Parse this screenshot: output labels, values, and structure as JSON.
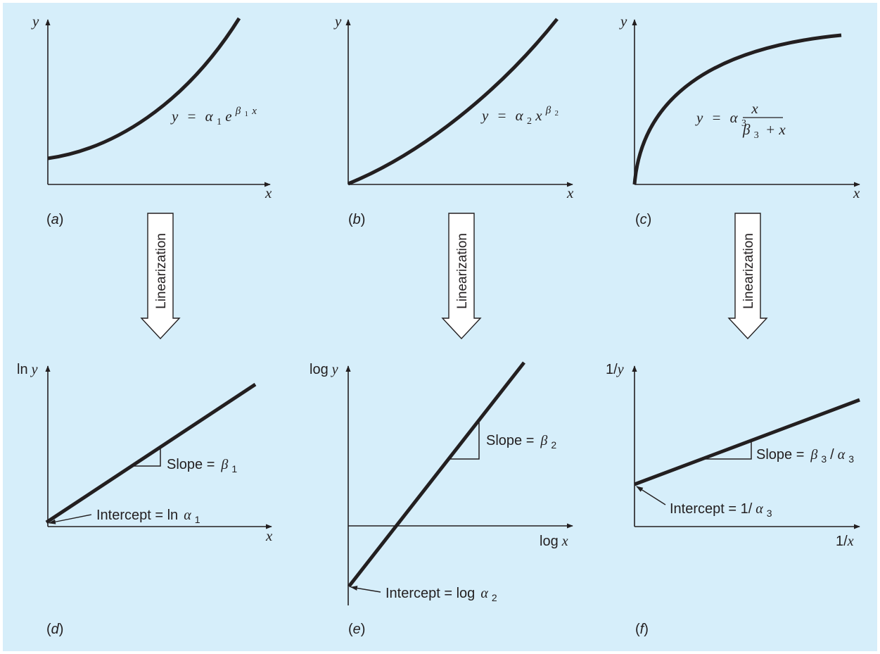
{
  "panels": {
    "a": {
      "label_open": "(",
      "label_letter": "a",
      "label_close": ")",
      "y_axis": "y",
      "x_axis": "x",
      "eq_lhs": "y",
      "eq_op": "=",
      "eq_coef": "α",
      "eq_coef_sub": "1",
      "eq_base": "e",
      "eq_exp_coef": "β",
      "eq_exp_sub": "1",
      "eq_exp_var": "x"
    },
    "b": {
      "label_open": "(",
      "label_letter": "b",
      "label_close": ")",
      "y_axis": "y",
      "x_axis": "x",
      "eq_lhs": "y",
      "eq_op": "=",
      "eq_coef": "α",
      "eq_coef_sub": "2",
      "eq_base": "x",
      "eq_exp_coef": "β",
      "eq_exp_sub": "2"
    },
    "c": {
      "label_open": "(",
      "label_letter": "c",
      "label_close": ")",
      "y_axis": "y",
      "x_axis": "x",
      "eq_lhs": "y",
      "eq_op": "=",
      "eq_coef": "α",
      "eq_coef_sub": "3",
      "eq_num": "x",
      "eq_den_coef": "β",
      "eq_den_sub": "3",
      "eq_den_rest": "+ x"
    },
    "d": {
      "label_open": "(",
      "label_letter": "d",
      "label_close": ")",
      "y_axis_fn": "ln",
      "y_axis_var": "y",
      "x_axis": "x",
      "slope_text": "Slope =",
      "slope_sym": "β",
      "slope_sub": "1",
      "intercept_text": "Intercept = ln",
      "intercept_sym": "α",
      "intercept_sub": "1"
    },
    "e": {
      "label_open": "(",
      "label_letter": "e",
      "label_close": ")",
      "y_axis_fn": "log",
      "y_axis_var": "y",
      "x_axis_fn": "log",
      "x_axis_var": "x",
      "slope_text": "Slope =",
      "slope_sym": "β",
      "slope_sub": "2",
      "intercept_text": "Intercept = log",
      "intercept_sym": "α",
      "intercept_sub": "2"
    },
    "f": {
      "label_open": "(",
      "label_letter": "f",
      "label_close": ")",
      "y_axis_fn": "1/",
      "y_axis_var": "y",
      "x_axis_fn": "1/",
      "x_axis_var": "x",
      "slope_text": "Slope =",
      "slope_sym1": "β",
      "slope_sub1": "3",
      "slope_slash": "/",
      "slope_sym2": "α",
      "slope_sub2": "3",
      "intercept_text": "Intercept = 1/",
      "intercept_sym": "α",
      "intercept_sub": "3"
    }
  },
  "arrows": {
    "left": {
      "label": "Linearization"
    },
    "middle": {
      "label": "Linearization"
    },
    "right": {
      "label": "Linearization"
    }
  },
  "colors": {
    "background": "#d6eefa",
    "ink": "#231f20",
    "arrow_fill": "#ffffff"
  }
}
